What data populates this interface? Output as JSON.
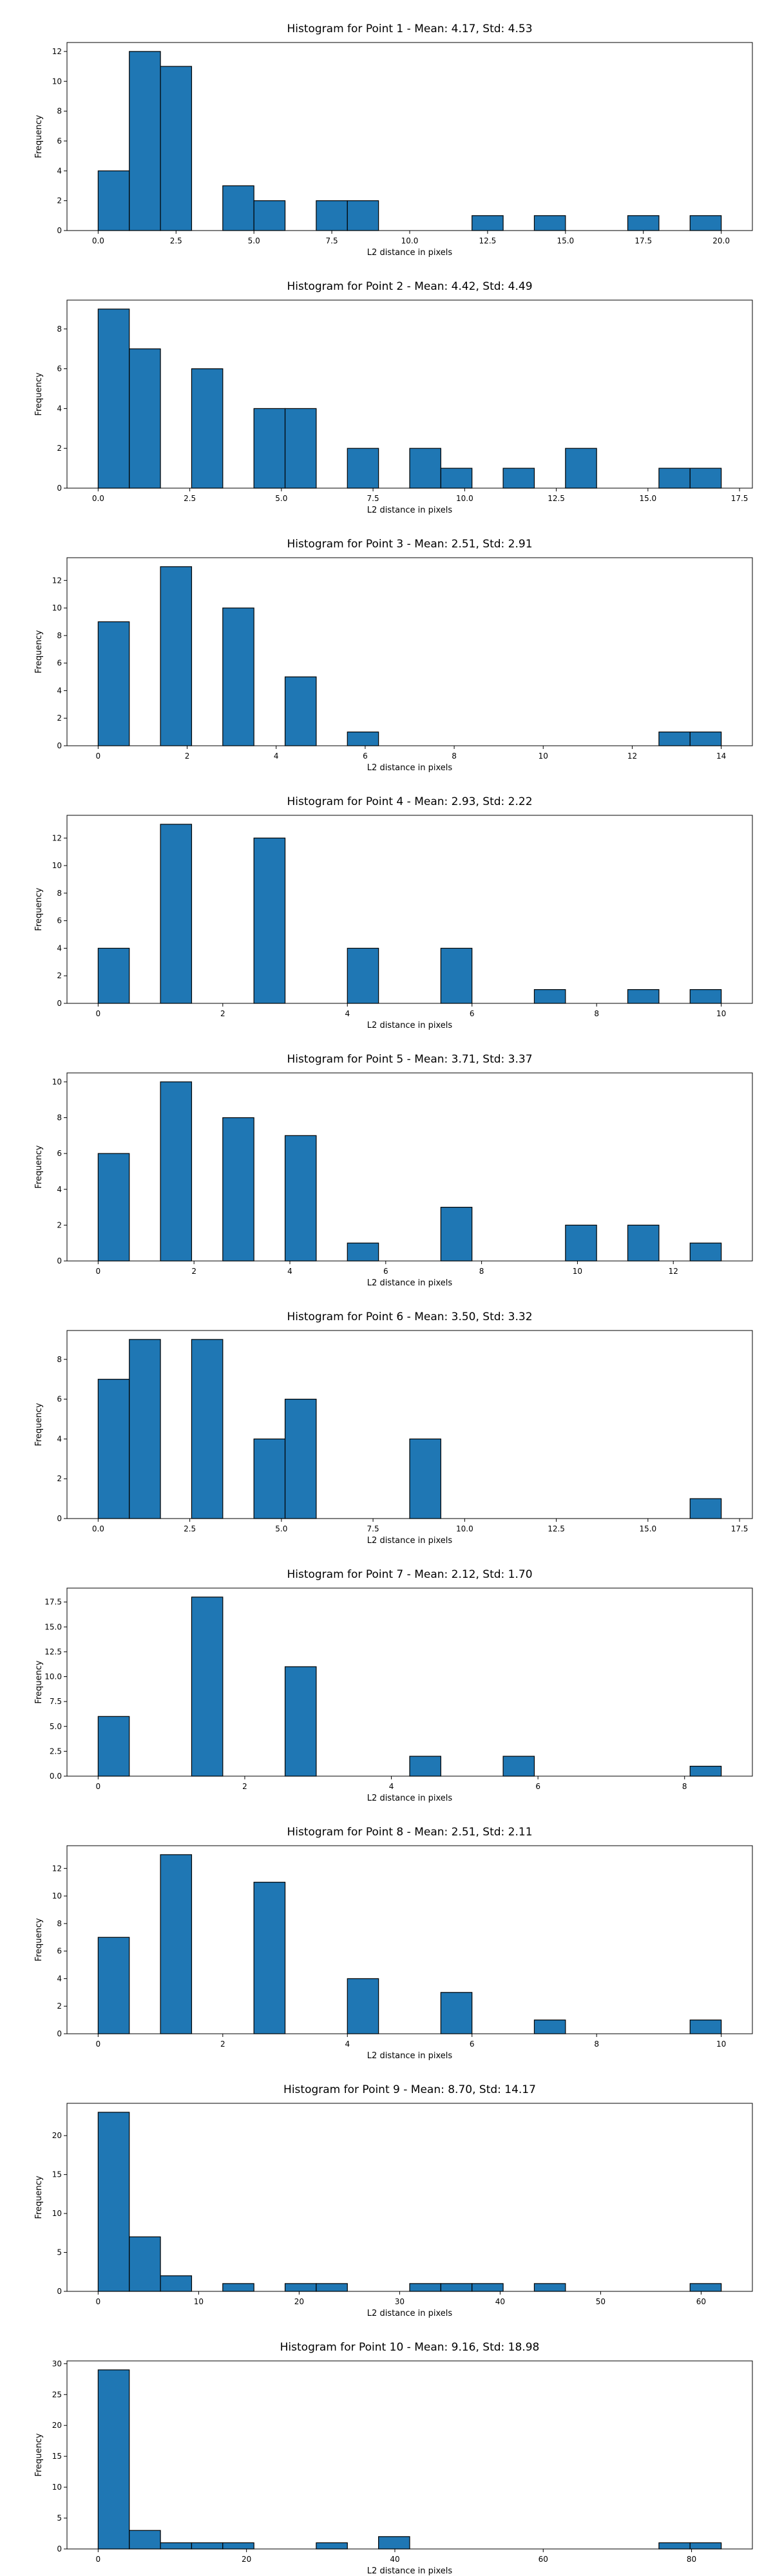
{
  "chart_data": [
    {
      "type": "bar",
      "title": "Histogram for Point 1 - Mean: 4.17, Std: 4.53",
      "xlabel": "L2 distance in pixels",
      "ylabel": "Frequency",
      "bar_color": "#1f77b4",
      "xlim": [
        -1.0,
        21.0
      ],
      "ylim": [
        0,
        12.6
      ],
      "xticks": [
        0.0,
        2.5,
        5.0,
        7.5,
        10.0,
        12.5,
        15.0,
        17.5,
        20.0
      ],
      "xtick_labels": [
        "0.0",
        "2.5",
        "5.0",
        "7.5",
        "10.0",
        "12.5",
        "15.0",
        "17.5",
        "20.0"
      ],
      "yticks": [
        0,
        2,
        4,
        6,
        8,
        10,
        12
      ],
      "ytick_labels": [
        "0",
        "2",
        "4",
        "6",
        "8",
        "10",
        "12"
      ],
      "bins": [
        {
          "x0": 0.0,
          "x1": 1.0,
          "count": 4
        },
        {
          "x0": 1.0,
          "x1": 2.0,
          "count": 12
        },
        {
          "x0": 2.0,
          "x1": 3.0,
          "count": 11
        },
        {
          "x0": 4.0,
          "x1": 5.0,
          "count": 3
        },
        {
          "x0": 5.0,
          "x1": 6.0,
          "count": 2
        },
        {
          "x0": 7.0,
          "x1": 8.0,
          "count": 2
        },
        {
          "x0": 8.0,
          "x1": 9.0,
          "count": 2
        },
        {
          "x0": 12.0,
          "x1": 13.0,
          "count": 1
        },
        {
          "x0": 14.0,
          "x1": 15.0,
          "count": 1
        },
        {
          "x0": 17.0,
          "x1": 18.0,
          "count": 1
        },
        {
          "x0": 19.0,
          "x1": 20.0,
          "count": 1
        }
      ]
    },
    {
      "type": "bar",
      "title": "Histogram for Point 2 - Mean: 4.42, Std: 4.49",
      "xlabel": "L2 distance in pixels",
      "ylabel": "Frequency",
      "bar_color": "#1f77b4",
      "xlim": [
        -0.85,
        17.85
      ],
      "ylim": [
        0,
        9.45
      ],
      "xticks": [
        0.0,
        2.5,
        5.0,
        7.5,
        10.0,
        12.5,
        15.0,
        17.5
      ],
      "xtick_labels": [
        "0.0",
        "2.5",
        "5.0",
        "7.5",
        "10.0",
        "12.5",
        "15.0",
        "17.5"
      ],
      "yticks": [
        0,
        2,
        4,
        6,
        8
      ],
      "ytick_labels": [
        "0",
        "2",
        "4",
        "6",
        "8"
      ],
      "bins": [
        {
          "x0": 0.0,
          "x1": 0.85,
          "count": 9
        },
        {
          "x0": 0.85,
          "x1": 1.7,
          "count": 7
        },
        {
          "x0": 2.55,
          "x1": 3.4,
          "count": 6
        },
        {
          "x0": 4.25,
          "x1": 5.1,
          "count": 4
        },
        {
          "x0": 5.1,
          "x1": 5.95,
          "count": 4
        },
        {
          "x0": 6.8,
          "x1": 7.65,
          "count": 2
        },
        {
          "x0": 8.5,
          "x1": 9.35,
          "count": 2
        },
        {
          "x0": 9.35,
          "x1": 10.2,
          "count": 1
        },
        {
          "x0": 11.05,
          "x1": 11.9,
          "count": 1
        },
        {
          "x0": 12.75,
          "x1": 13.6,
          "count": 2
        },
        {
          "x0": 15.3,
          "x1": 16.15,
          "count": 1
        },
        {
          "x0": 16.15,
          "x1": 17.0,
          "count": 1
        }
      ]
    },
    {
      "type": "bar",
      "title": "Histogram for Point 3 - Mean: 2.51, Std: 2.91",
      "xlabel": "L2 distance in pixels",
      "ylabel": "Frequency",
      "bar_color": "#1f77b4",
      "xlim": [
        -0.7,
        14.7
      ],
      "ylim": [
        0,
        13.65
      ],
      "xticks": [
        0,
        2,
        4,
        6,
        8,
        10,
        12,
        14
      ],
      "xtick_labels": [
        "0",
        "2",
        "4",
        "6",
        "8",
        "10",
        "12",
        "14"
      ],
      "yticks": [
        0,
        2,
        4,
        6,
        8,
        10,
        12
      ],
      "ytick_labels": [
        "0",
        "2",
        "4",
        "6",
        "8",
        "10",
        "12"
      ],
      "bins": [
        {
          "x0": 0.0,
          "x1": 0.7,
          "count": 9
        },
        {
          "x0": 1.4,
          "x1": 2.1,
          "count": 13
        },
        {
          "x0": 2.8,
          "x1": 3.5,
          "count": 10
        },
        {
          "x0": 4.2,
          "x1": 4.9,
          "count": 5
        },
        {
          "x0": 5.6,
          "x1": 6.3,
          "count": 1
        },
        {
          "x0": 12.6,
          "x1": 13.3,
          "count": 1
        },
        {
          "x0": 13.3,
          "x1": 14.0,
          "count": 1
        }
      ]
    },
    {
      "type": "bar",
      "title": "Histogram for Point 4 - Mean: 2.93, Std: 2.22",
      "xlabel": "L2 distance in pixels",
      "ylabel": "Frequency",
      "bar_color": "#1f77b4",
      "xlim": [
        -0.5,
        10.5
      ],
      "ylim": [
        0,
        13.65
      ],
      "xticks": [
        0,
        2,
        4,
        6,
        8,
        10
      ],
      "xtick_labels": [
        "0",
        "2",
        "4",
        "6",
        "8",
        "10"
      ],
      "yticks": [
        0,
        2,
        4,
        6,
        8,
        10,
        12
      ],
      "ytick_labels": [
        "0",
        "2",
        "4",
        "6",
        "8",
        "10",
        "12"
      ],
      "bins": [
        {
          "x0": 0.0,
          "x1": 0.5,
          "count": 4
        },
        {
          "x0": 1.0,
          "x1": 1.5,
          "count": 13
        },
        {
          "x0": 2.5,
          "x1": 3.0,
          "count": 12
        },
        {
          "x0": 4.0,
          "x1": 4.5,
          "count": 4
        },
        {
          "x0": 5.5,
          "x1": 6.0,
          "count": 4
        },
        {
          "x0": 7.0,
          "x1": 7.5,
          "count": 1
        },
        {
          "x0": 8.5,
          "x1": 9.0,
          "count": 1
        },
        {
          "x0": 9.5,
          "x1": 10.0,
          "count": 1
        }
      ]
    },
    {
      "type": "bar",
      "title": "Histogram for Point 5 - Mean: 3.71, Std: 3.37",
      "xlabel": "L2 distance in pixels",
      "ylabel": "Frequency",
      "bar_color": "#1f77b4",
      "xlim": [
        -0.65,
        13.65
      ],
      "ylim": [
        0,
        10.5
      ],
      "xticks": [
        0,
        2,
        4,
        6,
        8,
        10,
        12
      ],
      "xtick_labels": [
        "0",
        "2",
        "4",
        "6",
        "8",
        "10",
        "12"
      ],
      "yticks": [
        0,
        2,
        4,
        6,
        8,
        10
      ],
      "ytick_labels": [
        "0",
        "2",
        "4",
        "6",
        "8",
        "10"
      ],
      "bins": [
        {
          "x0": 0.0,
          "x1": 0.65,
          "count": 6
        },
        {
          "x0": 1.3,
          "x1": 1.95,
          "count": 10
        },
        {
          "x0": 2.6,
          "x1": 3.25,
          "count": 8
        },
        {
          "x0": 3.9,
          "x1": 4.55,
          "count": 7
        },
        {
          "x0": 5.2,
          "x1": 5.85,
          "count": 1
        },
        {
          "x0": 7.15,
          "x1": 7.8,
          "count": 3
        },
        {
          "x0": 9.75,
          "x1": 10.4,
          "count": 2
        },
        {
          "x0": 11.05,
          "x1": 11.7,
          "count": 2
        },
        {
          "x0": 12.35,
          "x1": 13.0,
          "count": 1
        }
      ]
    },
    {
      "type": "bar",
      "title": "Histogram for Point 6 - Mean: 3.50, Std: 3.32",
      "xlabel": "L2 distance in pixels",
      "ylabel": "Frequency",
      "bar_color": "#1f77b4",
      "xlim": [
        -0.85,
        17.85
      ],
      "ylim": [
        0,
        9.45
      ],
      "xticks": [
        0.0,
        2.5,
        5.0,
        7.5,
        10.0,
        12.5,
        15.0,
        17.5
      ],
      "xtick_labels": [
        "0.0",
        "2.5",
        "5.0",
        "7.5",
        "10.0",
        "12.5",
        "15.0",
        "17.5"
      ],
      "yticks": [
        0,
        2,
        4,
        6,
        8
      ],
      "ytick_labels": [
        "0",
        "2",
        "4",
        "6",
        "8"
      ],
      "bins": [
        {
          "x0": 0.0,
          "x1": 0.85,
          "count": 7
        },
        {
          "x0": 0.85,
          "x1": 1.7,
          "count": 9
        },
        {
          "x0": 2.55,
          "x1": 3.4,
          "count": 9
        },
        {
          "x0": 4.25,
          "x1": 5.1,
          "count": 4
        },
        {
          "x0": 5.1,
          "x1": 5.95,
          "count": 6
        },
        {
          "x0": 8.5,
          "x1": 9.35,
          "count": 4
        },
        {
          "x0": 16.15,
          "x1": 17.0,
          "count": 1
        }
      ]
    },
    {
      "type": "bar",
      "title": "Histogram for Point 7 - Mean: 2.12, Std: 1.70",
      "xlabel": "L2 distance in pixels",
      "ylabel": "Frequency",
      "bar_color": "#1f77b4",
      "xlim": [
        -0.425,
        8.925
      ],
      "ylim": [
        0,
        18.9
      ],
      "xticks": [
        0,
        2,
        4,
        6,
        8
      ],
      "xtick_labels": [
        "0",
        "2",
        "4",
        "6",
        "8"
      ],
      "yticks": [
        0.0,
        2.5,
        5.0,
        7.5,
        10.0,
        12.5,
        15.0,
        17.5
      ],
      "ytick_labels": [
        "0.0",
        "2.5",
        "5.0",
        "7.5",
        "10.0",
        "12.5",
        "15.0",
        "17.5"
      ],
      "bins": [
        {
          "x0": 0.0,
          "x1": 0.425,
          "count": 6
        },
        {
          "x0": 1.275,
          "x1": 1.7,
          "count": 18
        },
        {
          "x0": 2.55,
          "x1": 2.975,
          "count": 11
        },
        {
          "x0": 4.25,
          "x1": 4.675,
          "count": 2
        },
        {
          "x0": 5.525,
          "x1": 5.95,
          "count": 2
        },
        {
          "x0": 8.075,
          "x1": 8.5,
          "count": 1
        }
      ]
    },
    {
      "type": "bar",
      "title": "Histogram for Point 8 - Mean: 2.51, Std: 2.11",
      "xlabel": "L2 distance in pixels",
      "ylabel": "Frequency",
      "bar_color": "#1f77b4",
      "xlim": [
        -0.5,
        10.5
      ],
      "ylim": [
        0,
        13.65
      ],
      "xticks": [
        0,
        2,
        4,
        6,
        8,
        10
      ],
      "xtick_labels": [
        "0",
        "2",
        "4",
        "6",
        "8",
        "10"
      ],
      "yticks": [
        0,
        2,
        4,
        6,
        8,
        10,
        12
      ],
      "ytick_labels": [
        "0",
        "2",
        "4",
        "6",
        "8",
        "10",
        "12"
      ],
      "bins": [
        {
          "x0": 0.0,
          "x1": 0.5,
          "count": 7
        },
        {
          "x0": 1.0,
          "x1": 1.5,
          "count": 13
        },
        {
          "x0": 2.5,
          "x1": 3.0,
          "count": 11
        },
        {
          "x0": 4.0,
          "x1": 4.5,
          "count": 4
        },
        {
          "x0": 5.5,
          "x1": 6.0,
          "count": 3
        },
        {
          "x0": 7.0,
          "x1": 7.5,
          "count": 1
        },
        {
          "x0": 9.5,
          "x1": 10.0,
          "count": 1
        }
      ]
    },
    {
      "type": "bar",
      "title": "Histogram for Point 9 - Mean: 8.70, Std: 14.17",
      "xlabel": "L2 distance in pixels",
      "ylabel": "Frequency",
      "bar_color": "#1f77b4",
      "xlim": [
        -3.1,
        65.1
      ],
      "ylim": [
        0,
        24.15
      ],
      "xticks": [
        0,
        10,
        20,
        30,
        40,
        50,
        60
      ],
      "xtick_labels": [
        "0",
        "10",
        "20",
        "30",
        "40",
        "50",
        "60"
      ],
      "yticks": [
        0,
        5,
        10,
        15,
        20
      ],
      "ytick_labels": [
        "0",
        "5",
        "10",
        "15",
        "20"
      ],
      "bins": [
        {
          "x0": 0.0,
          "x1": 3.1,
          "count": 23
        },
        {
          "x0": 3.1,
          "x1": 6.2,
          "count": 7
        },
        {
          "x0": 6.2,
          "x1": 9.3,
          "count": 2
        },
        {
          "x0": 12.4,
          "x1": 15.5,
          "count": 1
        },
        {
          "x0": 18.6,
          "x1": 21.7,
          "count": 1
        },
        {
          "x0": 21.7,
          "x1": 24.8,
          "count": 1
        },
        {
          "x0": 31.0,
          "x1": 34.1,
          "count": 1
        },
        {
          "x0": 34.1,
          "x1": 37.2,
          "count": 1
        },
        {
          "x0": 37.2,
          "x1": 40.3,
          "count": 1
        },
        {
          "x0": 43.4,
          "x1": 46.5,
          "count": 1
        },
        {
          "x0": 58.9,
          "x1": 62.0,
          "count": 1
        }
      ]
    },
    {
      "type": "bar",
      "title": "Histogram for Point 10 - Mean: 9.16, Std: 18.98",
      "xlabel": "L2 distance in pixels",
      "ylabel": "Frequency",
      "bar_color": "#1f77b4",
      "xlim": [
        -4.2,
        88.2
      ],
      "ylim": [
        0,
        30.45
      ],
      "xticks": [
        0,
        20,
        40,
        60,
        80
      ],
      "xtick_labels": [
        "0",
        "20",
        "40",
        "60",
        "80"
      ],
      "yticks": [
        0,
        5,
        10,
        15,
        20,
        25,
        30
      ],
      "ytick_labels": [
        "0",
        "5",
        "10",
        "15",
        "20",
        "25",
        "30"
      ],
      "bins": [
        {
          "x0": 0.0,
          "x1": 4.2,
          "count": 29
        },
        {
          "x0": 4.2,
          "x1": 8.4,
          "count": 3
        },
        {
          "x0": 8.4,
          "x1": 12.6,
          "count": 1
        },
        {
          "x0": 12.6,
          "x1": 16.8,
          "count": 1
        },
        {
          "x0": 16.8,
          "x1": 21.0,
          "count": 1
        },
        {
          "x0": 29.4,
          "x1": 33.6,
          "count": 1
        },
        {
          "x0": 37.8,
          "x1": 42.0,
          "count": 2
        },
        {
          "x0": 75.6,
          "x1": 79.8,
          "count": 1
        },
        {
          "x0": 79.8,
          "x1": 84.0,
          "count": 1
        }
      ]
    }
  ]
}
